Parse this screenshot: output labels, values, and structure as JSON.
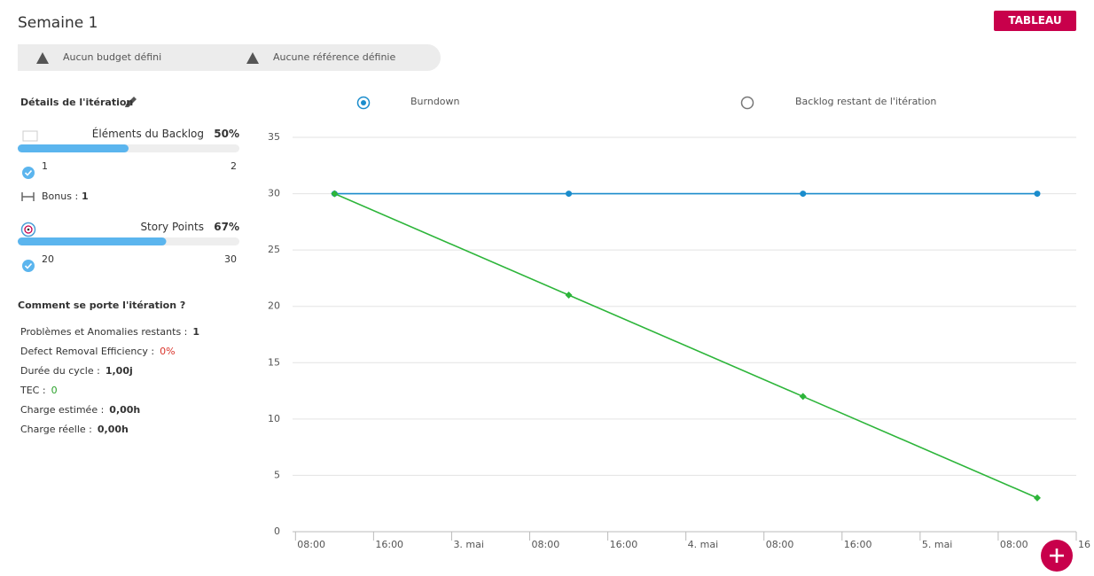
{
  "header": {
    "title": "Semaine 1",
    "button": "TABLEAU"
  },
  "warnings": [
    "Aucun budget défini",
    "Aucune référence définie"
  ],
  "details": {
    "title": "Détails de l'itération",
    "backlog": {
      "label": "Éléments du Backlog",
      "percent": 50,
      "percent_label": "50%",
      "done": 1,
      "total": 2,
      "bonus_label": "Bonus :",
      "bonus": 1
    },
    "story_points": {
      "label": "Story Points",
      "percent": 67,
      "percent_label": "67%",
      "done": 20,
      "total": 30
    }
  },
  "health": {
    "title": "Comment se porte l'itération ?",
    "rows": [
      {
        "label": "Problèmes et Anomalies restants :",
        "value": "1"
      },
      {
        "label": "Defect Removal Efficiency :",
        "value": "0%",
        "color": "#d9342b"
      },
      {
        "label": "Durée du cycle :",
        "value": "1,00j"
      },
      {
        "label": "TEC :",
        "value": "0",
        "color": "#2aa12a"
      },
      {
        "label": "Charge estimée :",
        "value": "0,00h"
      },
      {
        "label": "Charge réelle :",
        "value": "0,00h"
      }
    ]
  },
  "chart_options": [
    {
      "label": "Burndown",
      "selected": true
    },
    {
      "label": "Backlog restant de l'itération",
      "selected": false
    }
  ],
  "chart_data": {
    "type": "line",
    "x": [
      12,
      36,
      60,
      84
    ],
    "series": [
      {
        "color": "#1a8ccc",
        "marker": "circle",
        "values": [
          30,
          30,
          30,
          30
        ]
      },
      {
        "color": "#2db53a",
        "marker": "diamond",
        "values": [
          30,
          21,
          12,
          3
        ]
      }
    ],
    "xlim": [
      7.7,
      88
    ],
    "xticks": [
      {
        "value": 8,
        "label": "08:00"
      },
      {
        "value": 16,
        "label": "16:00"
      },
      {
        "value": 24,
        "label": "3. mai"
      },
      {
        "value": 32,
        "label": "08:00"
      },
      {
        "value": 40,
        "label": "16:00"
      },
      {
        "value": 48,
        "label": "4. mai"
      },
      {
        "value": 56,
        "label": "08:00"
      },
      {
        "value": 64,
        "label": "16:00"
      },
      {
        "value": 72,
        "label": "5. mai"
      },
      {
        "value": 80,
        "label": "08:00"
      },
      {
        "value": 88,
        "label": "16"
      }
    ],
    "ylim": [
      0,
      35
    ],
    "yticks": [
      0,
      5,
      10,
      15,
      20,
      25,
      30,
      35
    ],
    "grid": true
  }
}
